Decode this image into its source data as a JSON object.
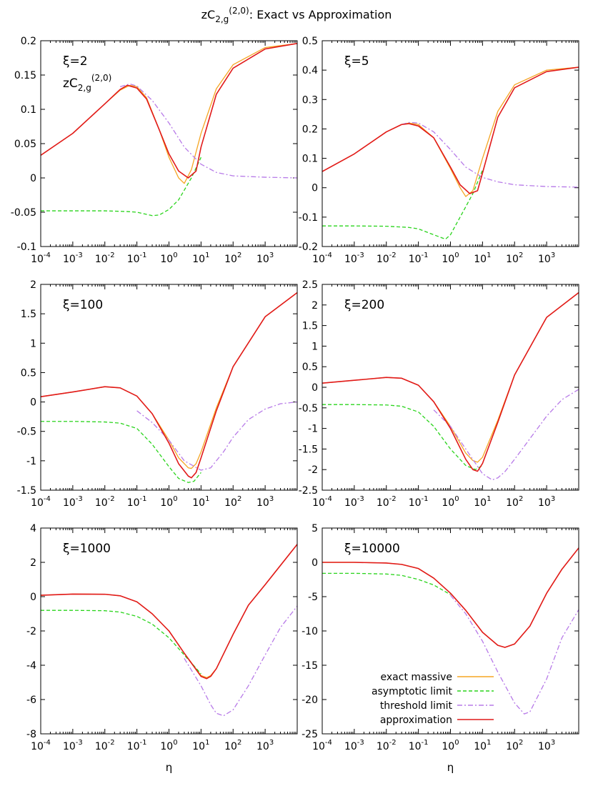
{
  "figure": {
    "title_prefix": "zC",
    "title_sub": "2,g",
    "title_sup": "(2,0)",
    "title_suffix": ": Exact vs Approximation"
  },
  "annotation_label": {
    "prefix": "zC",
    "sub": "2,g",
    "sup": "(2,0)"
  },
  "x_axis": {
    "label": "η",
    "scale": "log",
    "range": [
      0.0001,
      10000
    ],
    "ticks": [
      {
        "value": 0.0001,
        "base": "10",
        "exp": "-4"
      },
      {
        "value": 0.001,
        "base": "10",
        "exp": "-3"
      },
      {
        "value": 0.01,
        "base": "10",
        "exp": "-2"
      },
      {
        "value": 0.1,
        "base": "10",
        "exp": "-1"
      },
      {
        "value": 1,
        "base": "10",
        "exp": "0"
      },
      {
        "value": 10,
        "base": "10",
        "exp": "1"
      },
      {
        "value": 100,
        "base": "10",
        "exp": "2"
      },
      {
        "value": 1000,
        "base": "10",
        "exp": "3"
      }
    ]
  },
  "legend": {
    "placement": "bottom-right of last panel",
    "entries": [
      {
        "name": "exact massive",
        "color": "#f5a623",
        "dash": "solid"
      },
      {
        "name": "asymptotic limit",
        "color": "#2ad41c",
        "dash": "dashed"
      },
      {
        "name": "threshold limit",
        "color": "#b77ae8",
        "dash": "dash-dot"
      },
      {
        "name": "approximation",
        "color": "#e11a1a",
        "dash": "solid"
      }
    ]
  },
  "chart_data": [
    {
      "type": "line",
      "label": "ξ=2",
      "ylim": [
        -0.1,
        0.2
      ],
      "yticks": [
        {
          "v": -0.1,
          "t": "-0.1"
        },
        {
          "v": -0.05,
          "t": "-0.05"
        },
        {
          "v": 0,
          "t": "0"
        },
        {
          "v": 0.05,
          "t": "0.05"
        },
        {
          "v": 0.1,
          "t": "0.1"
        },
        {
          "v": 0.15,
          "t": "0.15"
        },
        {
          "v": 0.2,
          "t": "0.2"
        }
      ],
      "series": [
        {
          "name": "exact massive",
          "x": [
            0.0001,
            0.001,
            0.01,
            0.03,
            0.06,
            0.1,
            0.2,
            0.5,
            1,
            2,
            3,
            5,
            10,
            30,
            100,
            1000,
            10000
          ],
          "y": [
            0.033,
            0.065,
            0.108,
            0.128,
            0.135,
            0.133,
            0.117,
            0.07,
            0.03,
            0.0,
            -0.008,
            0.012,
            0.065,
            0.13,
            0.165,
            0.19,
            0.196
          ]
        },
        {
          "name": "asymptotic limit",
          "x": [
            0.0001,
            0.001,
            0.01,
            0.05,
            0.1,
            0.3,
            0.5,
            1,
            2,
            5,
            10
          ],
          "y": [
            -0.048,
            -0.048,
            -0.048,
            -0.049,
            -0.05,
            -0.055,
            -0.054,
            -0.046,
            -0.032,
            0.0,
            0.03
          ]
        },
        {
          "name": "threshold limit",
          "x": [
            0.03,
            0.06,
            0.1,
            0.3,
            1,
            3,
            10,
            30,
            100,
            1000,
            10000
          ],
          "y": [
            0.133,
            0.137,
            0.134,
            0.113,
            0.08,
            0.045,
            0.02,
            0.008,
            0.003,
            0.001,
            0.0
          ]
        },
        {
          "name": "approximation",
          "x": [
            0.0001,
            0.001,
            0.01,
            0.03,
            0.05,
            0.1,
            0.2,
            0.5,
            1,
            2,
            4,
            7,
            10,
            30,
            100,
            1000,
            10000
          ],
          "y": [
            0.033,
            0.065,
            0.108,
            0.129,
            0.135,
            0.131,
            0.115,
            0.07,
            0.035,
            0.01,
            0.0,
            0.01,
            0.045,
            0.122,
            0.16,
            0.188,
            0.196
          ]
        }
      ]
    },
    {
      "type": "line",
      "label": "ξ=5",
      "ylim": [
        -0.2,
        0.5
      ],
      "yticks": [
        {
          "v": -0.2,
          "t": "-0.2"
        },
        {
          "v": -0.1,
          "t": "-0.1"
        },
        {
          "v": 0,
          "t": "0"
        },
        {
          "v": 0.1,
          "t": "0.1"
        },
        {
          "v": 0.2,
          "t": "0.2"
        },
        {
          "v": 0.3,
          "t": "0.3"
        },
        {
          "v": 0.4,
          "t": "0.4"
        },
        {
          "v": 0.5,
          "t": "0.5"
        }
      ],
      "series": [
        {
          "name": "exact massive",
          "x": [
            0.0001,
            0.001,
            0.01,
            0.03,
            0.05,
            0.1,
            0.3,
            1,
            2,
            3,
            5,
            10,
            30,
            100,
            1000,
            10000
          ],
          "y": [
            0.055,
            0.115,
            0.19,
            0.215,
            0.22,
            0.215,
            0.17,
            0.065,
            0.0,
            -0.03,
            -0.01,
            0.1,
            0.26,
            0.35,
            0.4,
            0.41
          ]
        },
        {
          "name": "asymptotic limit",
          "x": [
            0.0001,
            0.001,
            0.01,
            0.05,
            0.1,
            0.3,
            0.7,
            1,
            2,
            5,
            10
          ],
          "y": [
            -0.13,
            -0.13,
            -0.131,
            -0.135,
            -0.14,
            -0.16,
            -0.175,
            -0.16,
            -0.1,
            -0.02,
            0.06
          ]
        },
        {
          "name": "threshold limit",
          "x": [
            0.03,
            0.05,
            0.1,
            0.3,
            1,
            3,
            10,
            30,
            100,
            1000,
            10000
          ],
          "y": [
            0.215,
            0.222,
            0.22,
            0.19,
            0.13,
            0.07,
            0.035,
            0.02,
            0.01,
            0.004,
            0.002
          ]
        },
        {
          "name": "approximation",
          "x": [
            0.0001,
            0.001,
            0.01,
            0.03,
            0.05,
            0.1,
            0.3,
            1,
            2,
            4,
            7,
            10,
            30,
            100,
            1000,
            10000
          ],
          "y": [
            0.055,
            0.115,
            0.19,
            0.215,
            0.218,
            0.21,
            0.17,
            0.07,
            0.01,
            -0.02,
            -0.01,
            0.05,
            0.24,
            0.34,
            0.395,
            0.41
          ]
        }
      ]
    },
    {
      "type": "line",
      "label": "ξ=100",
      "ylim": [
        -1.5,
        2
      ],
      "yticks": [
        {
          "v": -1.5,
          "t": "-1.5"
        },
        {
          "v": -1,
          "t": "-1"
        },
        {
          "v": -0.5,
          "t": "-0.5"
        },
        {
          "v": 0,
          "t": "0"
        },
        {
          "v": 0.5,
          "t": "0.5"
        },
        {
          "v": 1,
          "t": "1"
        },
        {
          "v": 1.5,
          "t": "1.5"
        },
        {
          "v": 2,
          "t": "2"
        }
      ],
      "series": [
        {
          "name": "exact massive",
          "x": [
            0.0001,
            0.001,
            0.01,
            0.03,
            0.1,
            0.3,
            1,
            2,
            4,
            5,
            7,
            10,
            30,
            100,
            1000,
            10000
          ],
          "y": [
            0.09,
            0.17,
            0.26,
            0.24,
            0.1,
            -0.2,
            -0.65,
            -0.95,
            -1.12,
            -1.13,
            -1.05,
            -0.85,
            -0.1,
            0.6,
            1.45,
            1.86
          ]
        },
        {
          "name": "asymptotic limit",
          "x": [
            0.0001,
            0.001,
            0.01,
            0.03,
            0.1,
            0.3,
            1,
            2,
            4,
            6,
            10
          ],
          "y": [
            -0.33,
            -0.33,
            -0.34,
            -0.36,
            -0.45,
            -0.72,
            -1.1,
            -1.3,
            -1.37,
            -1.35,
            -1.2
          ]
        },
        {
          "name": "threshold limit",
          "x": [
            0.1,
            0.3,
            1,
            3,
            10,
            20,
            30,
            50,
            100,
            300,
            1000,
            3000,
            10000
          ],
          "y": [
            -0.15,
            -0.35,
            -0.65,
            -1.0,
            -1.16,
            -1.12,
            -1.0,
            -0.85,
            -0.6,
            -0.3,
            -0.12,
            -0.03,
            0.0
          ]
        },
        {
          "name": "approximation",
          "x": [
            0.0001,
            0.001,
            0.01,
            0.03,
            0.1,
            0.3,
            1,
            2,
            4,
            5,
            7,
            10,
            30,
            100,
            1000,
            10000
          ],
          "y": [
            0.09,
            0.17,
            0.26,
            0.24,
            0.1,
            -0.2,
            -0.7,
            -1.05,
            -1.26,
            -1.29,
            -1.2,
            -0.95,
            -0.15,
            0.6,
            1.45,
            1.86
          ]
        }
      ]
    },
    {
      "type": "line",
      "label": "ξ=200",
      "ylim": [
        -2.5,
        2.5
      ],
      "yticks": [
        {
          "v": -2.5,
          "t": "-2.5"
        },
        {
          "v": -2,
          "t": "-2"
        },
        {
          "v": -1.5,
          "t": "-1.5"
        },
        {
          "v": -1,
          "t": "-1"
        },
        {
          "v": -0.5,
          "t": "-0.5"
        },
        {
          "v": 0,
          "t": "0"
        },
        {
          "v": 0.5,
          "t": "0.5"
        },
        {
          "v": 1,
          "t": "1"
        },
        {
          "v": 1.5,
          "t": "1.5"
        },
        {
          "v": 2,
          "t": "2"
        },
        {
          "v": 2.5,
          "t": "2.5"
        }
      ],
      "series": [
        {
          "name": "exact massive",
          "x": [
            0.0001,
            0.001,
            0.01,
            0.03,
            0.1,
            0.3,
            1,
            3,
            5,
            7,
            10,
            30,
            100,
            1000,
            10000
          ],
          "y": [
            0.1,
            0.17,
            0.24,
            0.22,
            0.05,
            -0.35,
            -0.95,
            -1.6,
            -1.78,
            -1.82,
            -1.7,
            -0.8,
            0.3,
            1.7,
            2.3
          ]
        },
        {
          "name": "asymptotic limit",
          "x": [
            0.0001,
            0.001,
            0.01,
            0.03,
            0.1,
            0.3,
            1,
            3,
            6,
            10
          ],
          "y": [
            -0.42,
            -0.42,
            -0.43,
            -0.46,
            -0.6,
            -0.95,
            -1.5,
            -1.9,
            -2.0,
            -1.9
          ]
        },
        {
          "name": "threshold limit",
          "x": [
            0.3,
            1,
            3,
            10,
            20,
            30,
            50,
            100,
            300,
            1000,
            3000,
            10000
          ],
          "y": [
            -0.55,
            -0.95,
            -1.5,
            -2.1,
            -2.25,
            -2.2,
            -2.05,
            -1.75,
            -1.25,
            -0.7,
            -0.3,
            -0.05
          ]
        },
        {
          "name": "approximation",
          "x": [
            0.0001,
            0.001,
            0.01,
            0.03,
            0.1,
            0.3,
            1,
            3,
            5,
            7,
            10,
            30,
            100,
            1000,
            10000
          ],
          "y": [
            0.1,
            0.17,
            0.24,
            0.22,
            0.05,
            -0.35,
            -1.0,
            -1.75,
            -2.0,
            -2.04,
            -1.85,
            -0.85,
            0.3,
            1.7,
            2.3
          ]
        }
      ]
    },
    {
      "type": "line",
      "label": "ξ=1000",
      "ylim": [
        -8,
        4
      ],
      "yticks": [
        {
          "v": -8,
          "t": "-8"
        },
        {
          "v": -6,
          "t": "-6"
        },
        {
          "v": -4,
          "t": "-4"
        },
        {
          "v": -2,
          "t": "-2"
        },
        {
          "v": 0,
          "t": "0"
        },
        {
          "v": 2,
          "t": "2"
        },
        {
          "v": 4,
          "t": "4"
        }
      ],
      "series": [
        {
          "name": "exact massive",
          "x": [
            0.0001,
            0.001,
            0.01,
            0.03,
            0.1,
            0.3,
            1,
            3,
            10,
            15,
            20,
            30,
            100,
            300,
            1000,
            10000
          ],
          "y": [
            0.08,
            0.15,
            0.14,
            0.05,
            -0.3,
            -1.0,
            -2.0,
            -3.3,
            -4.6,
            -4.72,
            -4.6,
            -4.2,
            -2.2,
            -0.5,
            0.7,
            3.05
          ]
        },
        {
          "name": "asymptotic limit",
          "x": [
            0.0001,
            0.001,
            0.01,
            0.03,
            0.1,
            0.3,
            1,
            3,
            10
          ],
          "y": [
            -0.8,
            -0.8,
            -0.82,
            -0.9,
            -1.15,
            -1.6,
            -2.4,
            -3.4,
            -4.5
          ]
        },
        {
          "name": "threshold limit",
          "x": [
            3,
            10,
            20,
            30,
            50,
            100,
            300,
            1000,
            3000,
            10000
          ],
          "y": [
            -3.6,
            -5.2,
            -6.3,
            -6.8,
            -6.95,
            -6.6,
            -5.2,
            -3.4,
            -1.8,
            -0.55
          ]
        },
        {
          "name": "approximation",
          "x": [
            0.0001,
            0.001,
            0.01,
            0.03,
            0.1,
            0.3,
            1,
            3,
            10,
            15,
            20,
            30,
            100,
            300,
            1000,
            10000
          ],
          "y": [
            0.08,
            0.15,
            0.14,
            0.05,
            -0.3,
            -1.0,
            -2.0,
            -3.3,
            -4.65,
            -4.78,
            -4.65,
            -4.2,
            -2.2,
            -0.5,
            0.7,
            3.05
          ]
        }
      ]
    },
    {
      "type": "line",
      "label": "ξ=10000",
      "ylim": [
        -25,
        5
      ],
      "yticks": [
        {
          "v": -25,
          "t": "-25"
        },
        {
          "v": -20,
          "t": "-20"
        },
        {
          "v": -15,
          "t": "-15"
        },
        {
          "v": -10,
          "t": "-10"
        },
        {
          "v": -5,
          "t": "-5"
        },
        {
          "v": 0,
          "t": "0"
        },
        {
          "v": 5,
          "t": "5"
        }
      ],
      "series": [
        {
          "name": "exact massive",
          "x": [
            0.0001,
            0.001,
            0.01,
            0.03,
            0.1,
            0.3,
            1,
            3,
            10,
            30,
            50,
            100,
            300,
            1000,
            3000,
            10000
          ],
          "y": [
            0.0,
            0.0,
            -0.1,
            -0.3,
            -0.9,
            -2.3,
            -4.5,
            -7.0,
            -10.2,
            -12.1,
            -12.4,
            -11.9,
            -9.3,
            -4.5,
            -1.0,
            2.1
          ]
        },
        {
          "name": "asymptotic limit",
          "x": [
            0.0001,
            0.001,
            0.01,
            0.03,
            0.1,
            0.3,
            1
          ],
          "y": [
            -1.6,
            -1.6,
            -1.7,
            -1.9,
            -2.5,
            -3.3,
            -4.7
          ]
        },
        {
          "name": "threshold limit",
          "x": [
            1,
            3,
            10,
            30,
            100,
            200,
            300,
            1000,
            3000,
            10000
          ],
          "y": [
            -4.8,
            -7.5,
            -11.5,
            -16.0,
            -20.5,
            -22.1,
            -21.8,
            -17.0,
            -11.0,
            -6.9
          ]
        },
        {
          "name": "approximation",
          "x": [
            0.0001,
            0.001,
            0.01,
            0.03,
            0.1,
            0.3,
            1,
            3,
            10,
            30,
            50,
            100,
            300,
            1000,
            3000,
            10000
          ],
          "y": [
            0.0,
            0.0,
            -0.1,
            -0.3,
            -0.9,
            -2.3,
            -4.5,
            -7.0,
            -10.2,
            -12.1,
            -12.4,
            -11.9,
            -9.3,
            -4.5,
            -1.0,
            2.1
          ]
        }
      ]
    }
  ]
}
